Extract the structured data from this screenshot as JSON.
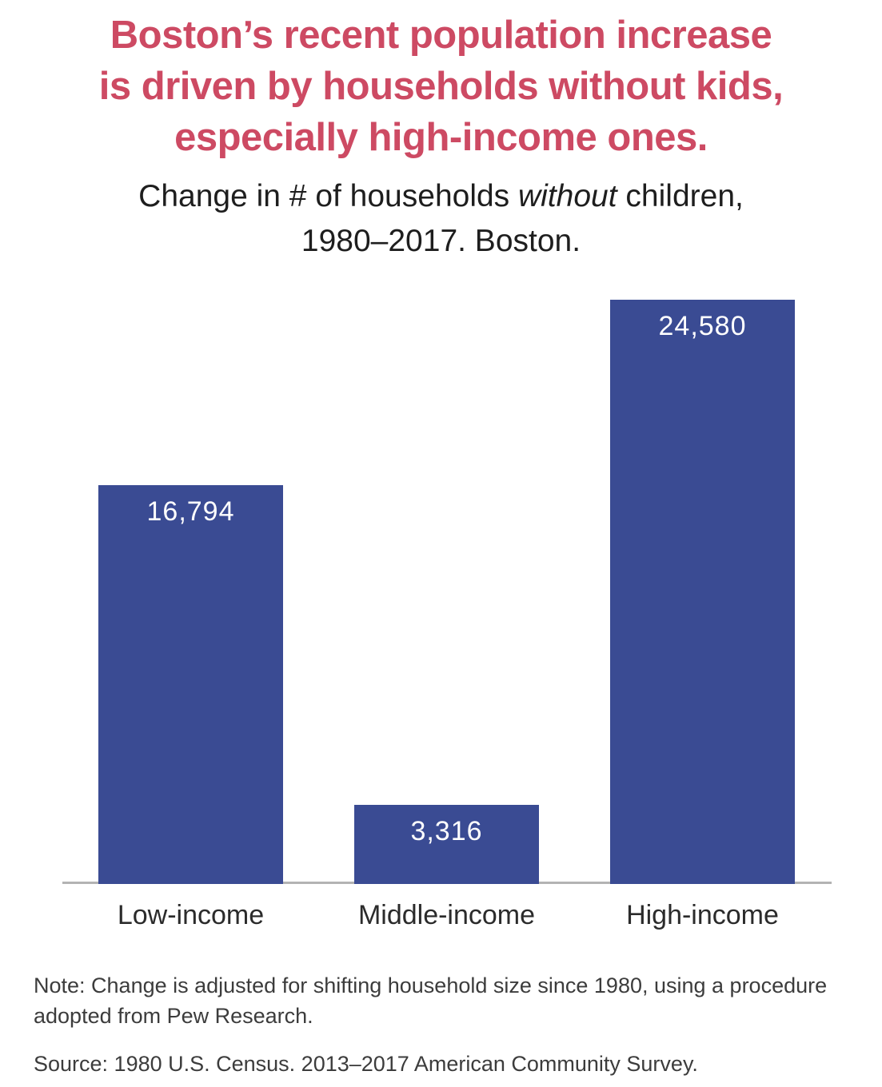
{
  "title": {
    "lines": [
      "Boston’s recent population increase",
      "is driven by households without kids,",
      "especially high-income ones."
    ],
    "color": "#cd4a63"
  },
  "subtitle": {
    "prefix": "Change in # of households ",
    "italic": "without",
    "suffix": " children,",
    "line2": "1980–2017. Boston."
  },
  "chart_data": {
    "type": "bar",
    "categories": [
      "Low-income",
      "Middle-income",
      "High-income"
    ],
    "values": [
      16794,
      3316,
      24580
    ],
    "value_labels": [
      "16,794",
      "3,316",
      "24,580"
    ],
    "title": "Change in # of households without children, 1980–2017. Boston.",
    "xlabel": "",
    "ylabel": "",
    "ylim": [
      0,
      24580
    ],
    "grid": false,
    "legend": false,
    "bar_color": "#3a4b93",
    "value_label_color": "#ffffff",
    "axis_line_color": "#b3b3b3"
  },
  "note": "Note: Change is adjusted for shifting household size since 1980, using a procedure adopted from Pew Research.",
  "source": "Source: 1980 U.S. Census. 2013–2017 American Community Survey."
}
